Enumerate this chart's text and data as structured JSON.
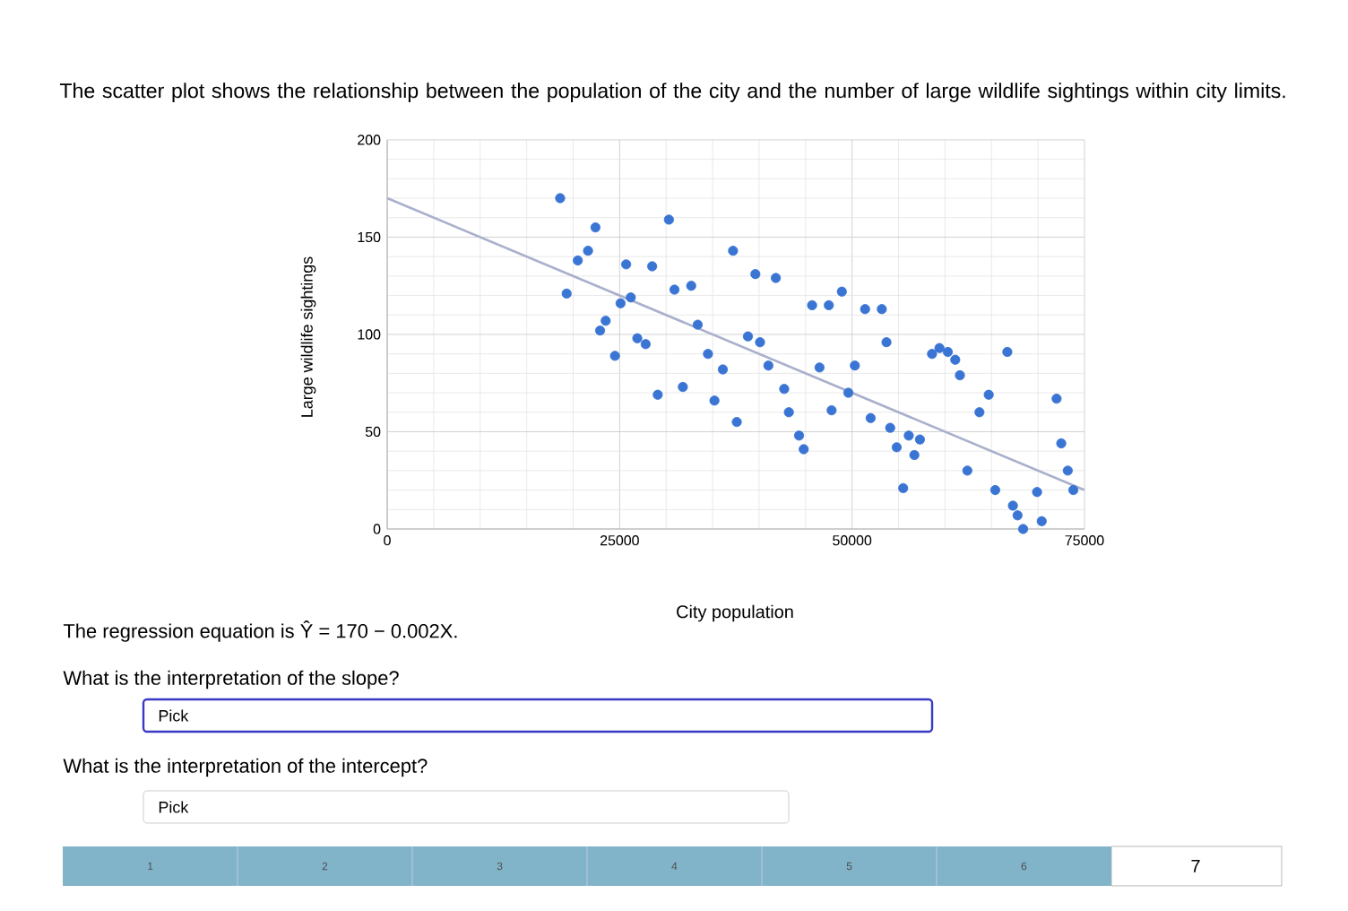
{
  "chart_data": {
    "type": "scatter",
    "title": "The scatter plot shows the relationship between the population of the city and the number of large wildlife sightings within city limits.",
    "xlabel": "City population",
    "ylabel": "Large wildlife sightings",
    "xlim": [
      0,
      75000
    ],
    "ylim": [
      0,
      200
    ],
    "xticks": [
      0,
      25000,
      50000,
      75000
    ],
    "yticks": [
      0,
      50,
      100,
      150,
      200
    ],
    "grid": true,
    "marker": "circle",
    "series": [
      {
        "color": "#3a75d4",
        "x": [
          18600,
          19300,
          20500,
          21600,
          22400,
          22900,
          23500,
          24500,
          25100,
          25700,
          26200,
          26900,
          27800,
          28500,
          29100,
          30300,
          30900,
          31800,
          32700,
          33400,
          34500,
          35200,
          36100,
          37200,
          37600,
          38800,
          39600,
          41800,
          40100,
          41000,
          42700,
          43200,
          44300,
          44800,
          45700,
          47500,
          48900,
          46500,
          47800,
          49600,
          50300,
          51400,
          53200,
          53700,
          52000,
          54100,
          54800,
          56100,
          57300,
          56700,
          55500,
          58600,
          59400,
          60300,
          61100,
          61600,
          62400,
          63700,
          64700,
          66700,
          65400,
          67300,
          67800,
          68400,
          69900,
          70400,
          72000,
          72500,
          73200,
          73800
        ],
        "values": [
          170,
          121,
          138,
          143,
          155,
          102,
          107,
          89,
          116,
          136,
          119,
          98,
          95,
          135,
          69,
          159,
          123,
          73,
          125,
          105,
          90,
          66,
          82,
          143,
          55,
          99,
          131,
          129,
          96,
          84,
          72,
          60,
          48,
          41,
          115,
          115,
          122,
          83,
          61,
          70,
          84,
          113,
          113,
          96,
          57,
          52,
          42,
          48,
          46,
          38,
          21,
          90,
          93,
          91,
          87,
          79,
          30,
          60,
          69,
          91,
          20,
          12,
          7,
          0,
          19,
          4,
          67,
          44,
          30,
          20
        ]
      },
      {
        "type": "line",
        "color": "#aab0cc",
        "marker": "none",
        "x": [
          0,
          75000
        ],
        "values": [
          170,
          20
        ]
      }
    ],
    "annotations": [
      "The regression equation is Ŷ = 170 − 0.002X.",
      "What is the interpretation of the slope?",
      "Pick",
      "What is the interpretation of the intercept?",
      "Pick",
      "1",
      "2",
      "3",
      "4",
      "5",
      "6",
      "7"
    ]
  }
}
